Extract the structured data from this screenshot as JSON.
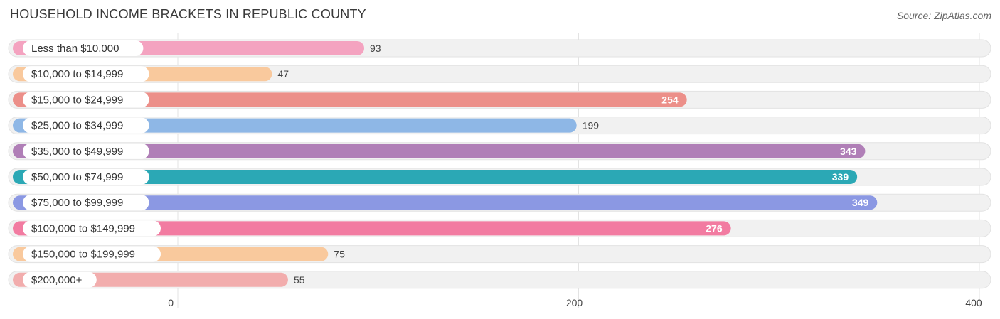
{
  "header": {
    "title": "HOUSEHOLD INCOME BRACKETS IN REPUBLIC COUNTY",
    "source": "Source: ZipAtlas.com"
  },
  "chart_data": {
    "type": "bar",
    "orientation": "horizontal",
    "title": "HOUSEHOLD INCOME BRACKETS IN REPUBLIC COUNTY",
    "xlabel": "",
    "ylabel": "",
    "xlim": [
      0,
      400
    ],
    "ticks": [
      0,
      200,
      400
    ],
    "grid": true,
    "categories": [
      "Less than $10,000",
      "$10,000 to $14,999",
      "$15,000 to $24,999",
      "$25,000 to $34,999",
      "$35,000 to $49,999",
      "$50,000 to $74,999",
      "$75,000 to $99,999",
      "$100,000 to $149,999",
      "$150,000 to $199,999",
      "$200,000+"
    ],
    "values": [
      93,
      47,
      254,
      199,
      343,
      339,
      349,
      276,
      75,
      55
    ],
    "colors": [
      "#f4a3c0",
      "#f9c99d",
      "#ec8f89",
      "#8eb7e6",
      "#b07fb7",
      "#2ba8b5",
      "#8b98e3",
      "#f27ba1",
      "#f9c99d",
      "#f2adad"
    ]
  }
}
